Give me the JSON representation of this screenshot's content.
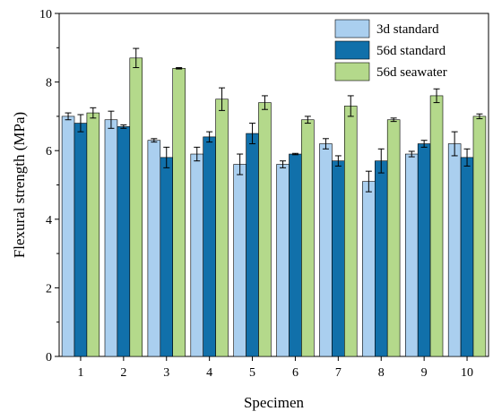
{
  "chart_data": {
    "type": "bar",
    "title": "",
    "xlabel": "Specimen",
    "ylabel": "Flexural strength (MPa)",
    "categories": [
      "1",
      "2",
      "3",
      "4",
      "5",
      "6",
      "7",
      "8",
      "9",
      "10"
    ],
    "ylim": [
      0,
      10
    ],
    "yticks": [
      "0",
      "2",
      "4",
      "6",
      "8",
      "10"
    ],
    "legend_position": "top-right",
    "series": [
      {
        "name": "3d standard",
        "color": "#aacfef",
        "values": [
          7.0,
          6.9,
          6.3,
          5.9,
          5.6,
          5.6,
          6.2,
          5.1,
          5.9,
          6.2
        ],
        "errors": [
          0.1,
          0.25,
          0.05,
          0.2,
          0.3,
          0.1,
          0.15,
          0.3,
          0.08,
          0.35
        ]
      },
      {
        "name": "56d standard",
        "color": "#1170aa",
        "values": [
          6.8,
          6.7,
          5.8,
          6.4,
          6.5,
          5.9,
          5.7,
          5.7,
          6.2,
          5.8
        ],
        "errors": [
          0.25,
          0.05,
          0.3,
          0.15,
          0.3,
          0.02,
          0.15,
          0.35,
          0.1,
          0.25
        ]
      },
      {
        "name": "56d seawater",
        "color": "#b4d98b",
        "values": [
          7.1,
          8.7,
          8.4,
          7.5,
          7.4,
          6.9,
          7.3,
          6.9,
          7.6,
          7.0
        ],
        "errors": [
          0.15,
          0.28,
          0.02,
          0.33,
          0.2,
          0.1,
          0.3,
          0.05,
          0.2,
          0.07
        ]
      }
    ]
  }
}
